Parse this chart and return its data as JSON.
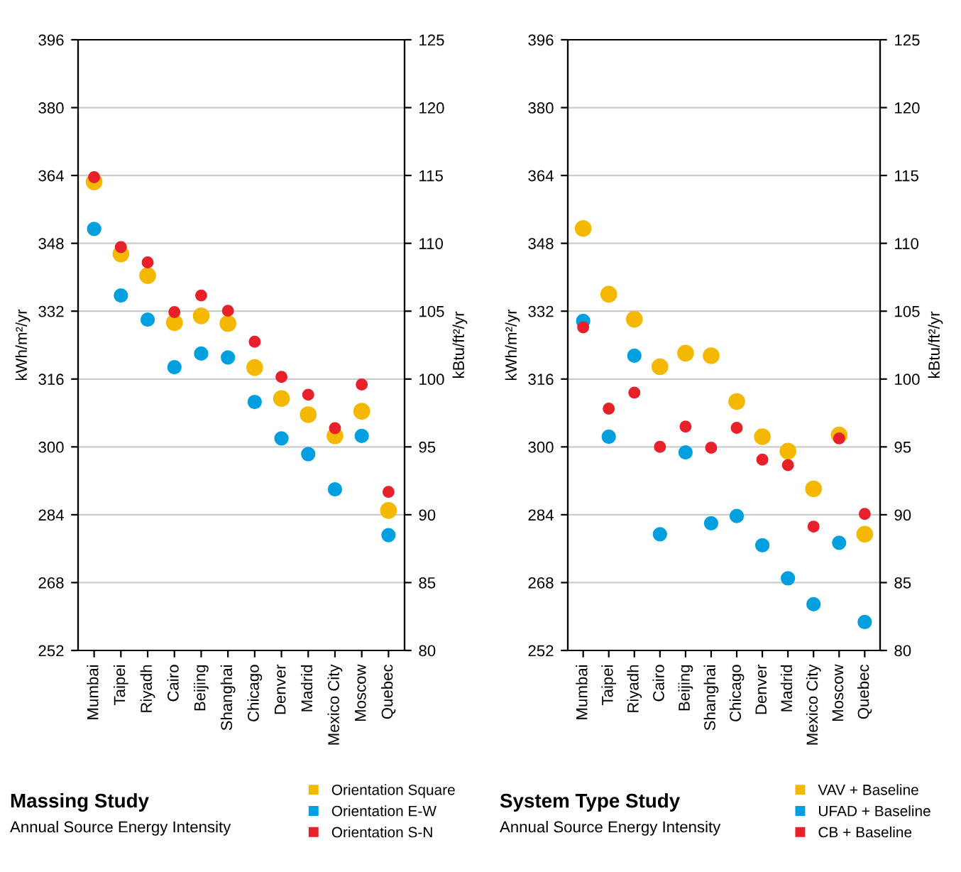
{
  "chart_data": [
    {
      "type": "scatter",
      "title": "Massing Study",
      "subtitle": "Annual Source Energy Intensity",
      "ylabel": "kWh/m²/yr",
      "y2label": "kBtu/ft²/yr",
      "categories": [
        "Mumbai",
        "Taipei",
        "Riyadh",
        "Cairo",
        "Beijing",
        "Shanghai",
        "Chicago",
        "Denver",
        "Madrid",
        "Mexico City",
        "Moscow",
        "Quebec"
      ],
      "series": [
        {
          "name": "Orientation Square",
          "color": "#f5b800",
          "values": [
            362.5,
            345.5,
            340.4,
            329.3,
            330.9,
            329.1,
            318.7,
            311.4,
            307.6,
            302.6,
            308.4,
            285
          ]
        },
        {
          "name": "Orientation E-W",
          "color": "#00a0e0",
          "values": [
            351.4,
            335.7,
            330,
            318.8,
            322,
            321.1,
            310.6,
            302,
            298.3,
            290,
            302.6,
            279.2
          ]
        },
        {
          "name": "Orientation S-N",
          "color": "#e8202a",
          "values": [
            363.6,
            347.1,
            343.5,
            331.8,
            335.7,
            332.1,
            324.8,
            316.5,
            312.3,
            304.4,
            314.7,
            289.4
          ]
        }
      ],
      "ylim": [
        252,
        396
      ],
      "yticks": [
        252,
        268,
        284,
        300,
        316,
        332,
        348,
        364,
        380,
        396
      ],
      "y2lim": [
        80,
        125
      ],
      "y2ticks": [
        80,
        85,
        90,
        95,
        100,
        105,
        110,
        115,
        120,
        125
      ],
      "grid": "y",
      "legend": "bottom right",
      "marker": "circle"
    },
    {
      "type": "scatter",
      "title": "System Type Study",
      "subtitle": "Annual Source Energy Intensity",
      "ylabel": "kWh/m²/yr",
      "y2label": "kBtu/ft²/yr",
      "categories": [
        "Mumbai",
        "Taipei",
        "Riyadh",
        "Cairo",
        "Beijing",
        "Shanghai",
        "Chicago",
        "Denver",
        "Madrid",
        "Mexico City",
        "Moscow",
        "Quebec"
      ],
      "series": [
        {
          "name": "VAV + Baseline",
          "color": "#f5b800",
          "values": [
            351.5,
            336,
            330.1,
            318.9,
            322.1,
            321.5,
            310.7,
            302.4,
            299,
            290.1,
            302.8,
            279.4
          ]
        },
        {
          "name": "UFAD + Baseline",
          "color": "#00a0e0",
          "values": [
            329.7,
            302.4,
            321.5,
            279.4,
            298.7,
            282,
            283.7,
            276.8,
            269,
            262.9,
            277.4,
            258.7
          ]
        },
        {
          "name": "CB + Baseline",
          "color": "#e8202a",
          "values": [
            328.2,
            309,
            312.8,
            300,
            304.8,
            299.8,
            304.5,
            297,
            295.7,
            281.2,
            302,
            284.2
          ]
        }
      ],
      "ylim": [
        252,
        396
      ],
      "yticks": [
        252,
        268,
        284,
        300,
        316,
        332,
        348,
        364,
        380,
        396
      ],
      "y2lim": [
        80,
        125
      ],
      "y2ticks": [
        80,
        85,
        90,
        95,
        100,
        105,
        110,
        115,
        120,
        125
      ],
      "grid": "y",
      "legend": "bottom right",
      "marker": "circle"
    }
  ]
}
